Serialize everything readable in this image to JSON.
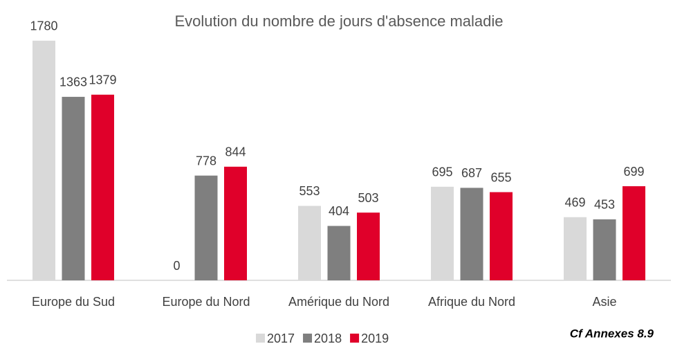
{
  "chart_data": {
    "type": "bar",
    "title": "Evolution du nombre de jours d'absence maladie",
    "categories": [
      "Europe du Sud",
      "Europe du Nord",
      "Amérique du Nord",
      "Afrique du Nord",
      "Asie"
    ],
    "series": [
      {
        "name": "2017",
        "color": "#d9d9d9",
        "values": [
          1780,
          0,
          553,
          695,
          469
        ]
      },
      {
        "name": "2018",
        "color": "#7f7f7f",
        "values": [
          1363,
          778,
          404,
          687,
          453
        ]
      },
      {
        "name": "2019",
        "color": "#e0002a",
        "values": [
          1379,
          844,
          503,
          655,
          699
        ]
      }
    ],
    "ylim": [
      0,
      2000
    ],
    "legend": "bottom",
    "annotation": "Cf Annexes 8.9"
  }
}
